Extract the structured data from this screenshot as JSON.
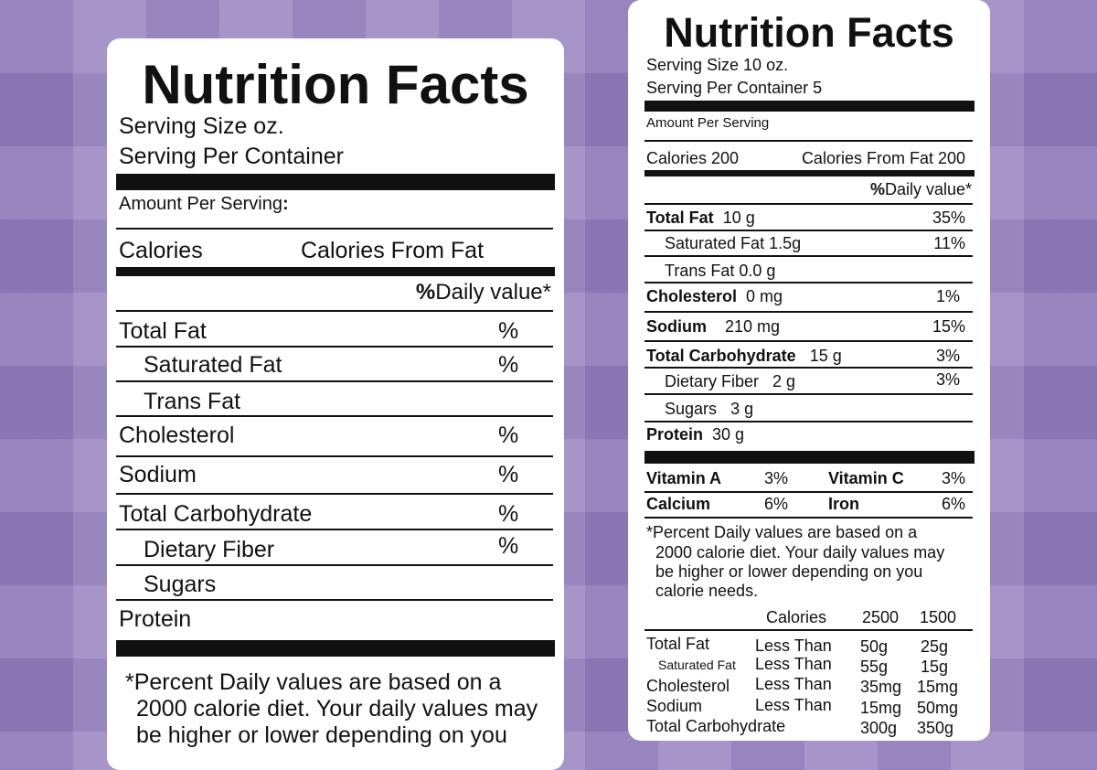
{
  "left_label": {
    "title": "Nutrition Facts",
    "serving_size": "Serving Size oz.",
    "serving_per_container": "Serving Per Container",
    "amount_per_serving": "Amount Per Serving",
    "amount_colon": ":",
    "calories": "Calories",
    "calories_from_fat": "Calories From Fat",
    "pct_symbol": "%",
    "daily_value": "Daily value*",
    "rows": [
      {
        "label": "Total Fat",
        "pct": "%"
      },
      {
        "label": "Saturated Fat",
        "pct": "%"
      },
      {
        "label": "Trans Fat",
        "pct": ""
      },
      {
        "label": "Cholesterol",
        "pct": "%"
      },
      {
        "label": "Sodium",
        "pct": "%"
      },
      {
        "label": "Total Carbohydrate",
        "pct": "%"
      },
      {
        "label": "Dietary Fiber",
        "pct": "%"
      },
      {
        "label": "Sugars",
        "pct": ""
      },
      {
        "label": "Protein",
        "pct": ""
      }
    ],
    "footnote": [
      "*Percent Daily values are based on a",
      "2000 calorie diet. Your daily values may",
      "be higher or lower depending on you"
    ]
  },
  "right_label": {
    "title": "Nutrition Facts",
    "serving_size": "Serving Size 10 oz.",
    "serving_per_container": "Serving Per Container 5",
    "amount_per_serving": "Amount Per Serving",
    "calories": "Calories 200",
    "calories_from_fat": "Calories From Fat 200",
    "pct_symbol": "%",
    "daily_value": "Daily value*",
    "rows": [
      {
        "label": "Total Fat",
        "amount": "10 g",
        "pct": "35%"
      },
      {
        "label": "Saturated Fat",
        "amount": "1.5g",
        "pct": "11%"
      },
      {
        "label": "Trans Fat",
        "amount": "0.0 g",
        "pct": ""
      },
      {
        "label": "Cholesterol",
        "amount": "0 mg",
        "pct": "1%"
      },
      {
        "label": "Sodium",
        "amount": "210 mg",
        "pct": "15%"
      },
      {
        "label": "Total Carbohydrate",
        "amount": "15 g",
        "pct": "3%"
      },
      {
        "label": "Dietary Fiber",
        "amount": "2 g",
        "pct": "3%"
      },
      {
        "label": "Sugars",
        "amount": "3 g",
        "pct": ""
      },
      {
        "label": "Protein",
        "amount": "30 g",
        "pct": ""
      }
    ],
    "vitamins": [
      {
        "name": "Vitamin A",
        "pct": "3%"
      },
      {
        "name": "Vitamin C",
        "pct": "3%"
      },
      {
        "name": "Calcium",
        "pct": "6%"
      },
      {
        "name": "Iron",
        "pct": "6%"
      }
    ],
    "footnote": [
      "*Percent Daily values are based on a",
      "2000 calorie diet. Your daily values may",
      "be higher or lower depending on you",
      "calorie needs."
    ],
    "dv_table": {
      "headers": [
        "Calories",
        "2500",
        "1500"
      ],
      "rows": [
        {
          "nutrient": "Total Fat",
          "qual": "Less Than",
          "v2500": "50g",
          "v1500": "25g"
        },
        {
          "nutrient": "Saturated Fat",
          "qual": "Less Than",
          "v2500": "55g",
          "v1500": "15g"
        },
        {
          "nutrient": "Cholesterol",
          "qual": "Less Than",
          "v2500": "35mg",
          "v1500": "15mg"
        },
        {
          "nutrient": "Sodium",
          "qual": "Less Than",
          "v2500": "15mg",
          "v1500": "50mg"
        },
        {
          "nutrient": "Total Carbohydrate",
          "qual": "",
          "v2500": "300g",
          "v1500": "350g"
        }
      ]
    }
  }
}
